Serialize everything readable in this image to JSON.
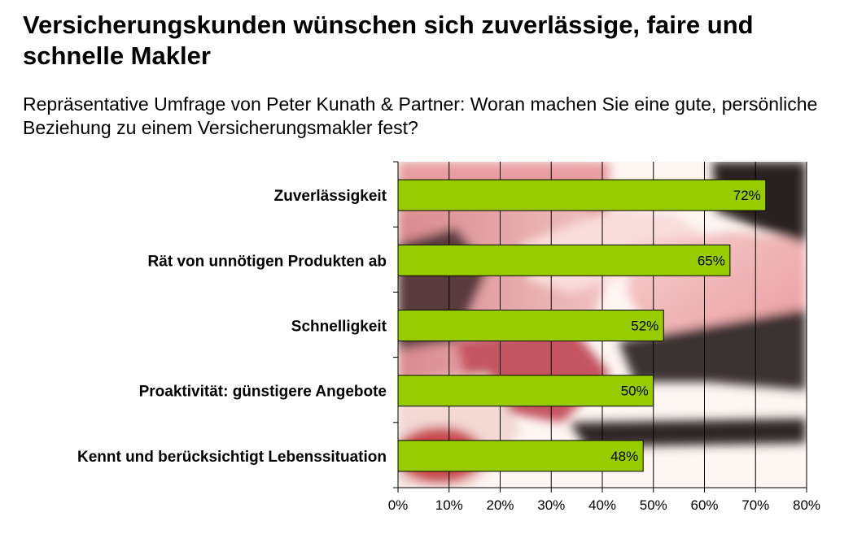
{
  "header": {
    "title": "Versicherungskunden wünschen sich zuverlässige, faire und schnelle Makler",
    "subtitle": "Repräsentative Umfrage von Peter Kunath & Partner: Woran machen Sie eine gute, persönliche Beziehung zu einem Versicherungsmakler fest?"
  },
  "chart_data": {
    "type": "bar",
    "orientation": "horizontal",
    "categories": [
      "Zuverlässigkeit",
      "Rät von unnötigen Produkten ab",
      "Schnelligkeit",
      "Proaktivität: günstigere Angebote",
      "Kennt und berücksichtigt Lebenssituation"
    ],
    "values": [
      72,
      65,
      52,
      50,
      48
    ],
    "value_labels": [
      "72%",
      "65%",
      "52%",
      "50%",
      "48%"
    ],
    "xlim": [
      0,
      80
    ],
    "xticks": [
      0,
      10,
      20,
      30,
      40,
      50,
      60,
      70,
      80
    ],
    "xtick_labels": [
      "0%",
      "10%",
      "20%",
      "30%",
      "40%",
      "50%",
      "60%",
      "70%",
      "80%"
    ],
    "grid": true,
    "bar_color": "#99cc00",
    "background": "photo of shaking hands"
  }
}
